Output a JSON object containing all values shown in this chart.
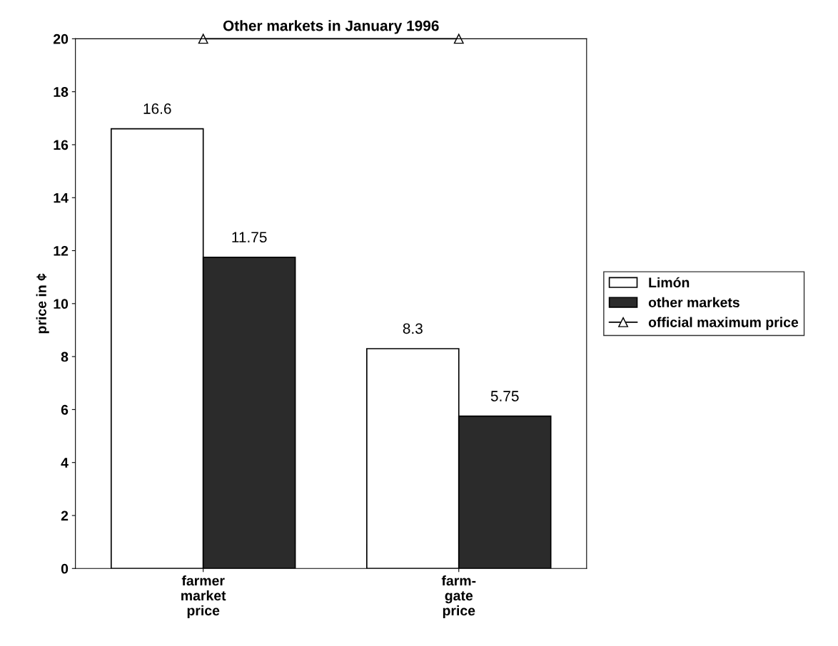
{
  "chart_data": {
    "type": "bar",
    "title": "Other markets in January 1996",
    "ylabel": "price in ¢",
    "categories": [
      "farmer\nmarket\nprice",
      "farm-\ngate\nprice"
    ],
    "series": [
      {
        "name": "Limón",
        "color": "#ffffff",
        "values": [
          16.6,
          8.3
        ],
        "value_labels": [
          "16.6",
          "8.3"
        ]
      },
      {
        "name": "other markets",
        "color": "#2b2b2b",
        "values": [
          11.75,
          5.75
        ],
        "value_labels": [
          "11.75",
          "5.75"
        ]
      },
      {
        "name": "official maximum price",
        "type": "line",
        "color": "#000000",
        "marker": "triangle",
        "values": [
          20,
          20
        ]
      }
    ],
    "ylim": [
      0,
      20
    ],
    "yticks": [
      0,
      2,
      4,
      6,
      8,
      10,
      12,
      14,
      16,
      18,
      20
    ],
    "grid": false,
    "legend": "right"
  }
}
